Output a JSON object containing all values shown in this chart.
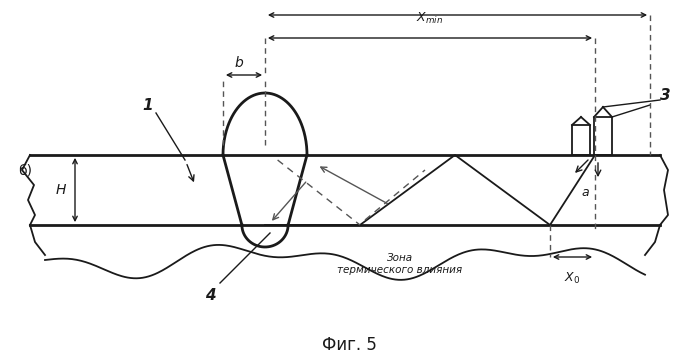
{
  "title": "Фиг. 5",
  "label_b_side": "б)",
  "label_1": "1",
  "label_3": "3",
  "label_4": "4",
  "label_H": "H",
  "label_b_dim": "b",
  "label_a": "a",
  "label_zone": "Зона\nтермического влияния",
  "bg_color": "#ffffff",
  "line_color": "#1a1a1a",
  "dashed_color": "#555555",
  "figsize": [
    6.98,
    3.57
  ],
  "dpi": 100
}
